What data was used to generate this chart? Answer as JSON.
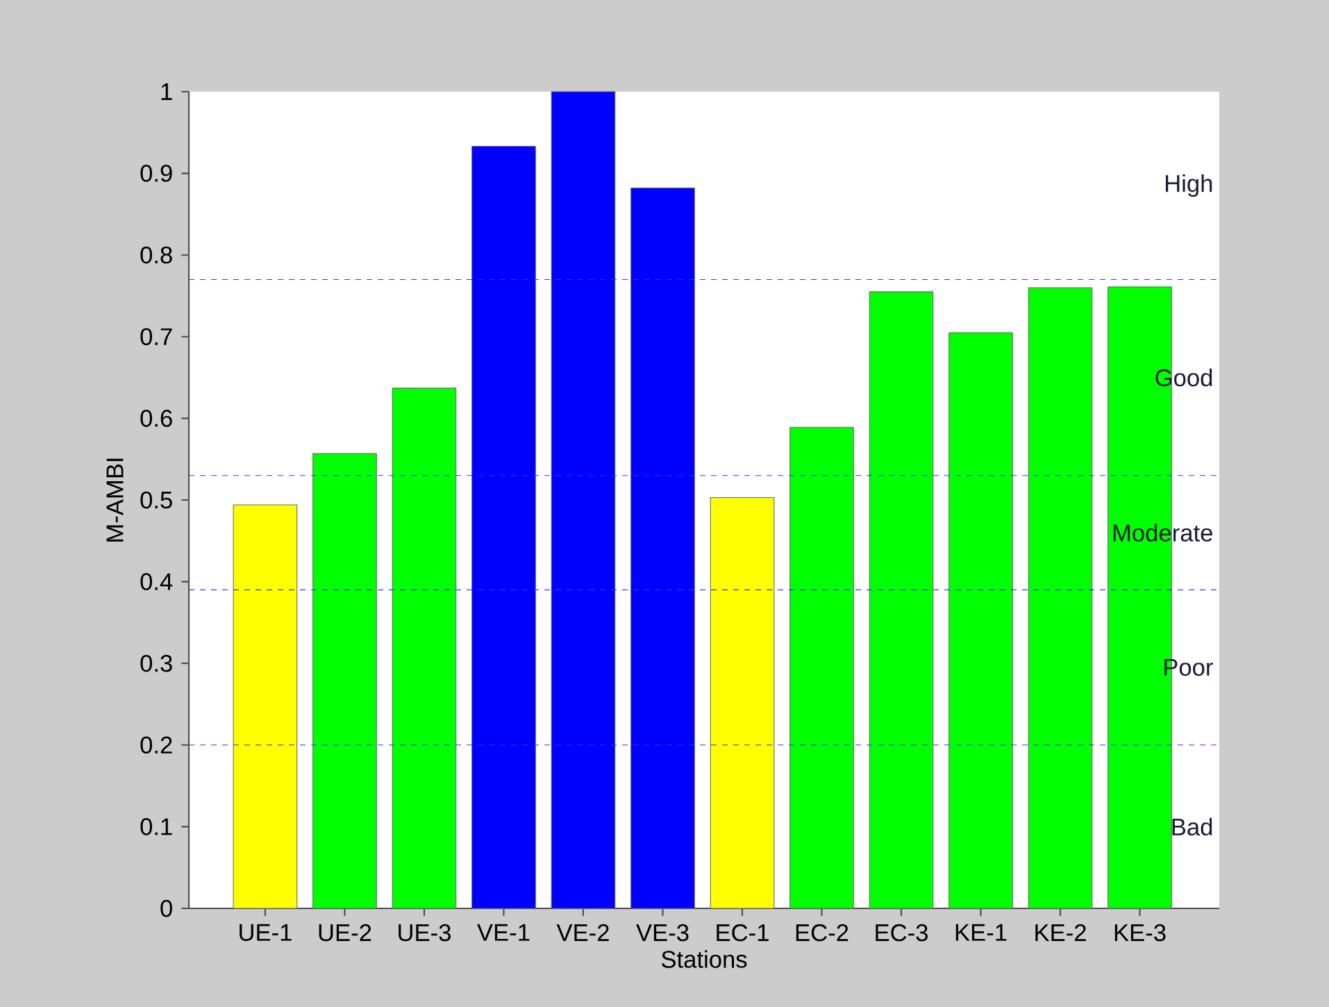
{
  "chart_data": {
    "type": "bar",
    "xlabel": "Stations",
    "ylabel": "M-AMBI",
    "categories": [
      "UE-1",
      "UE-2",
      "UE-3",
      "VE-1",
      "VE-2",
      "VE-3",
      "EC-1",
      "EC-2",
      "EC-3",
      "KE-1",
      "KE-2",
      "KE-3"
    ],
    "values": [
      0.494,
      0.557,
      0.637,
      0.933,
      1.0,
      0.882,
      0.503,
      0.589,
      0.755,
      0.705,
      0.76,
      0.761
    ],
    "colors": [
      "#ffff00",
      "#00ff00",
      "#00ff00",
      "#0000ff",
      "#0000ff",
      "#0000ff",
      "#ffff00",
      "#00ff00",
      "#00ff00",
      "#00ff00",
      "#00ff00",
      "#00ff00"
    ],
    "ylim": [
      0,
      1
    ],
    "yticks": [
      0,
      0.1,
      0.2,
      0.3,
      0.4,
      0.5,
      0.6,
      0.7,
      0.8,
      0.9,
      1
    ],
    "ref_lines": [
      {
        "axis": "y",
        "value": 0.77,
        "color": "#3333ff",
        "line_style": "dashed"
      },
      {
        "axis": "y",
        "value": 0.53,
        "color": "#3333ff",
        "line_style": "dashed"
      },
      {
        "axis": "y",
        "value": 0.39,
        "color": "#3333ff",
        "line_style": "dashed"
      },
      {
        "axis": "y",
        "value": 0.2,
        "color": "#3333ff",
        "line_style": "dashed"
      }
    ],
    "annotations": [
      "High",
      "Good",
      "Moderate",
      "Poor",
      "Bad"
    ]
  }
}
